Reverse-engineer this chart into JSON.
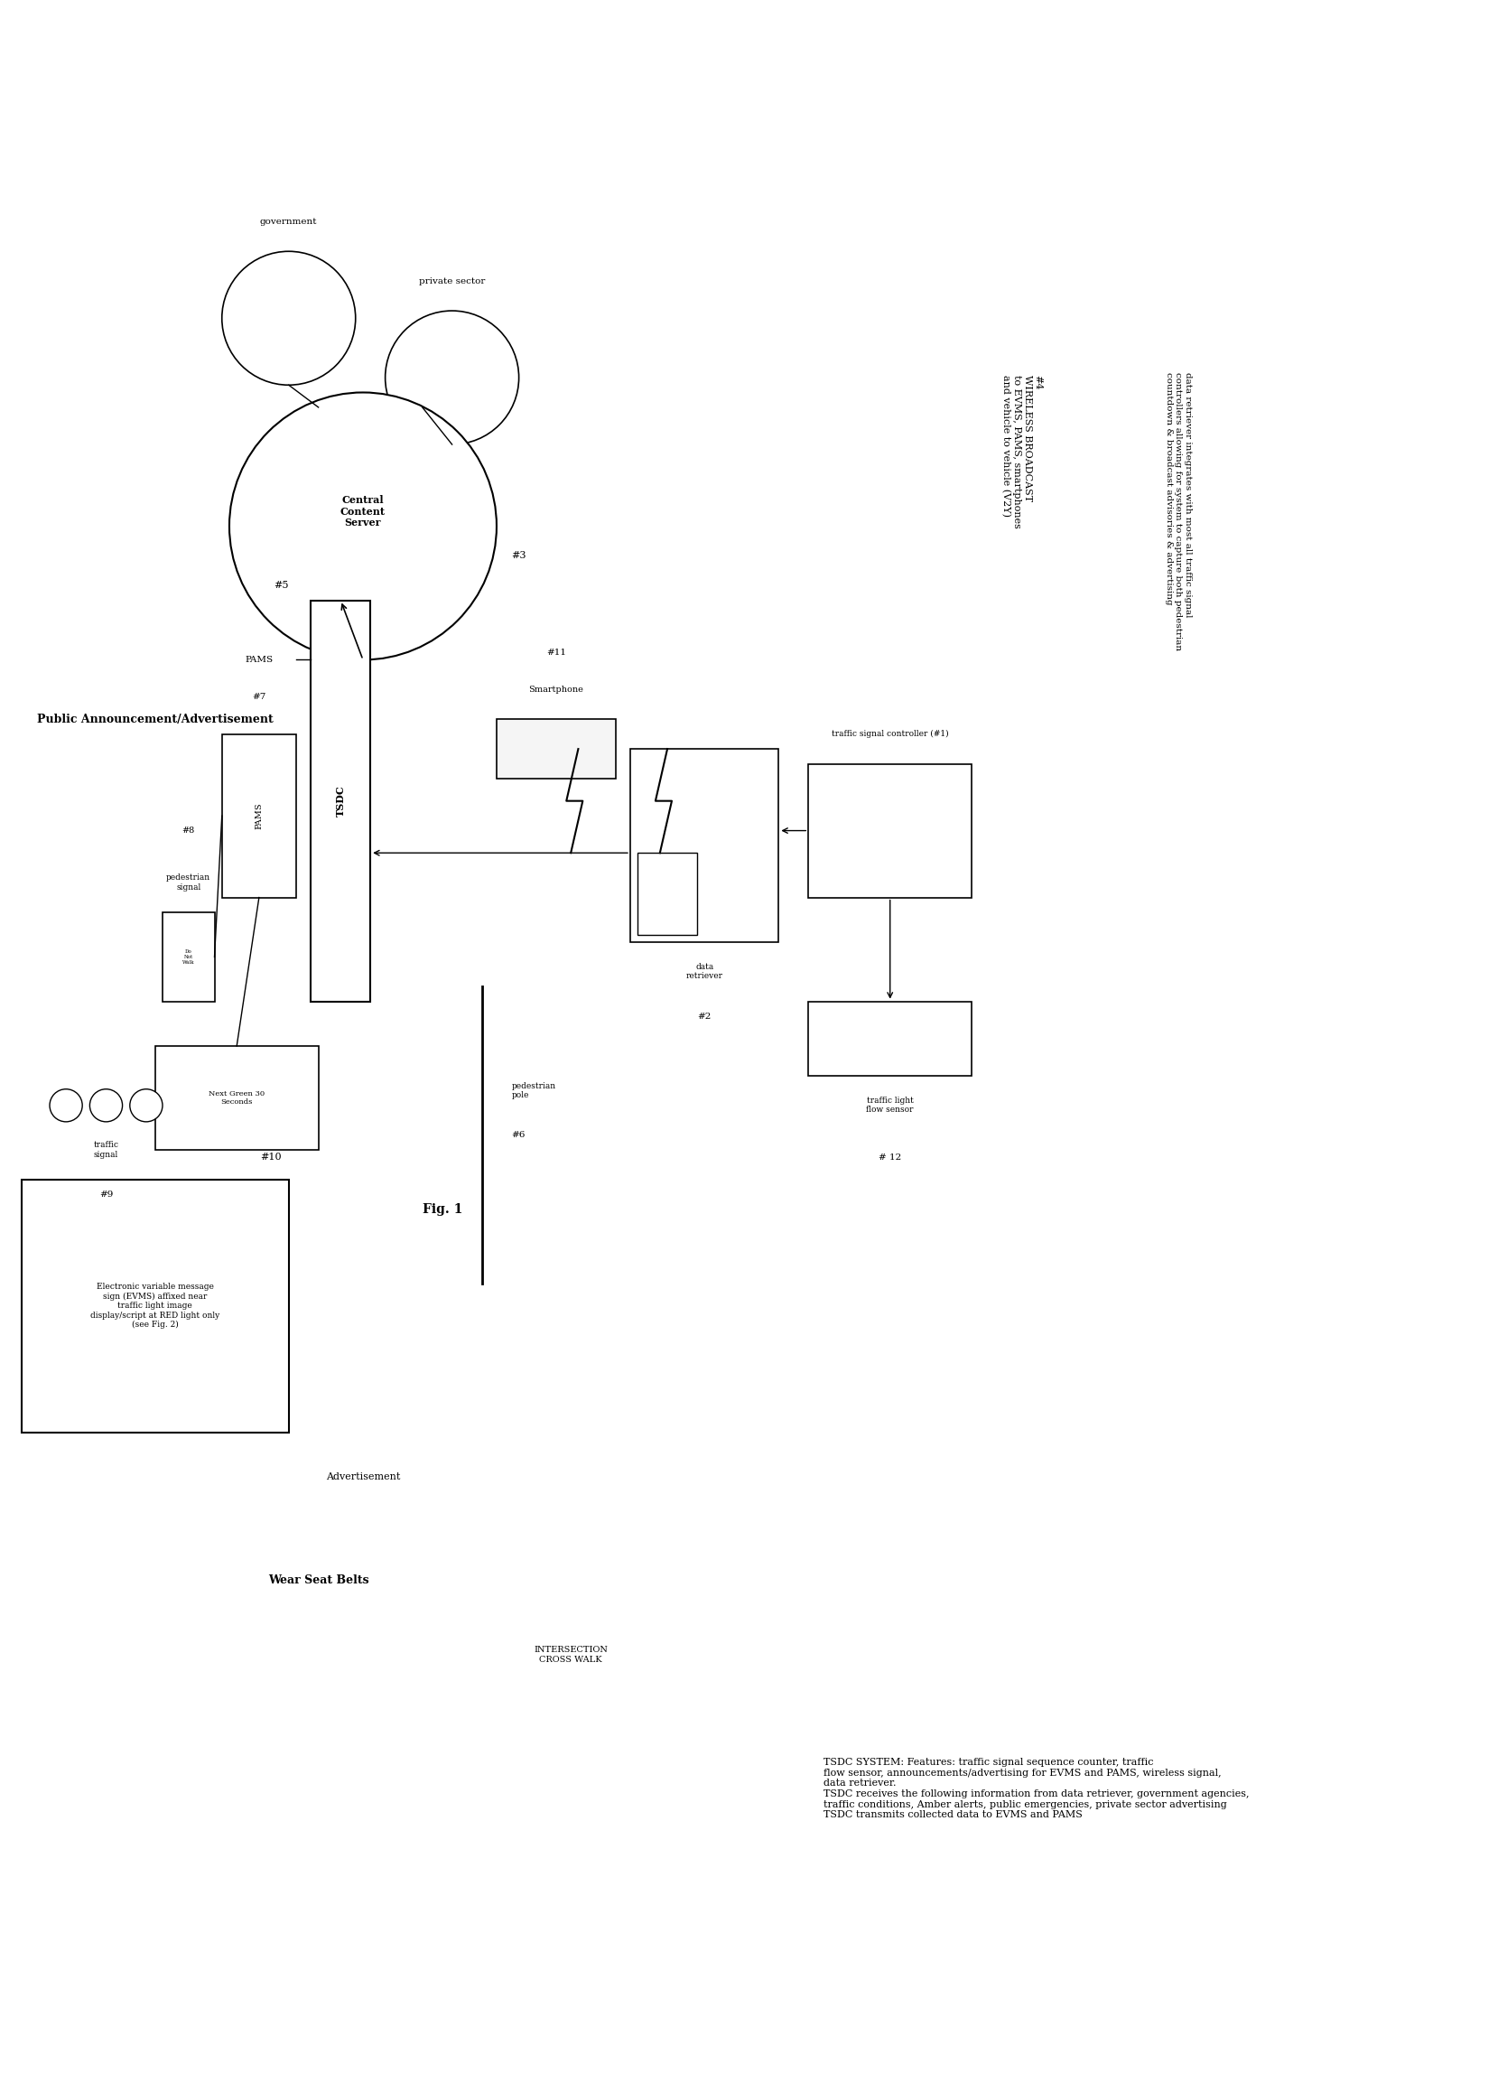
{
  "bg_color": "#ffffff",
  "fig_label": "Fig. 1",
  "title_text": "Public Announcement/Advertisement",
  "government_label": "government",
  "private_sector_label": "private sector",
  "central_server_label": "Central\nContent\nServer",
  "central_server_num": "#3",
  "tsdc_label": "TSDC",
  "tsdc_num": "#5",
  "pams_label": "PAMS",
  "pams_num": "#7",
  "pedestrian_signal_label": "pedestrian\nsignal",
  "pedestrian_signal_num": "#8",
  "traffic_signal_label": "traffic\nsignal",
  "traffic_signal_num": "#9",
  "evms_label": "Electronic variable message\nsign (EVMS) affixed near\ntraffic light image\ndisplay/script at RED light only\n(see Fig. 2)",
  "evms_num": "#10",
  "smartphone_label": "Smartphone",
  "smartphone_num": "#11",
  "data_retriever_label": "data\nretriever",
  "data_retriever_num": "#2",
  "traffic_controller_label": "traffic signal controller (#1)",
  "traffic_light_flow_label": "traffic light\nflow sensor",
  "traffic_light_flow_num": "# 12",
  "pedestrian_pole_label": "pedestrian\npole",
  "pedestrian_pole_num": "#6",
  "advertisement_label": "Advertisement",
  "wear_seat_belts_label": "Wear Seat Belts",
  "intersection_label": "INTERSECTION\nCROSS WALK",
  "wireless_broadcast_label": "#4\nWIRELESS BROADCAST\nto EVMS, PAMS, smartphones\nand vehicle to vehicle (V2Y)",
  "data_retriever_integrates_label": "data retriever integrates with most all traffic signal\ncontrollers allowing for system to capture both pedestrian\ncountdown & broadcast advisories & advertising",
  "next_green_label": "Next Green 30\nSeconds",
  "do_not_walk_label": "Do\nNot\nWalk",
  "tsdc_system_label": "TSDC SYSTEM: Features: traffic signal sequence counter, traffic\nflow sensor, announcements/advertising for EVMS and PAMS, wireless signal,\ndata retriever.\nTSDC receives the following information from data retriever, government agencies,\ntraffic conditions, Amber alerts, public emergencies, private sector advertising\nTSDC transmits collected data to EVMS and PAMS"
}
